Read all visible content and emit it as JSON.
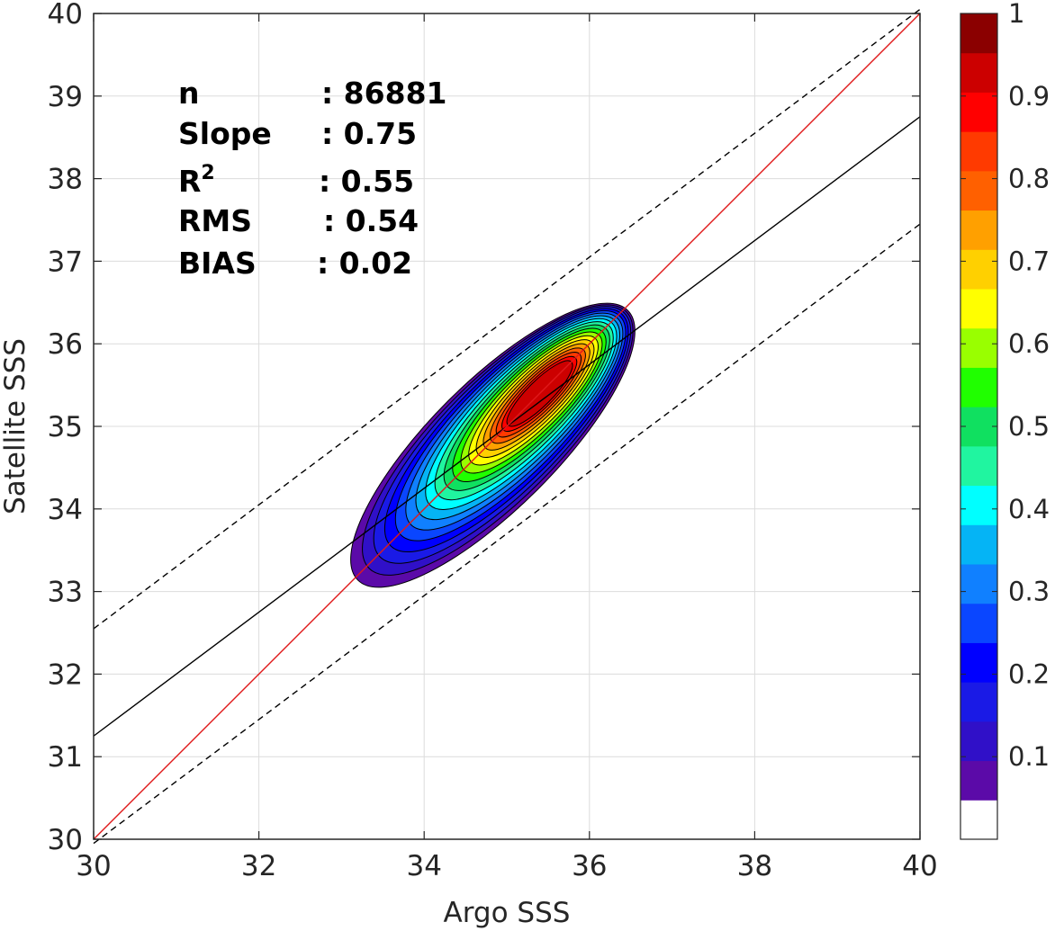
{
  "chart_data": {
    "type": "contour",
    "xlabel": "Argo SSS",
    "ylabel": "Satellite SSS",
    "xlim": [
      30,
      40
    ],
    "ylim": [
      30,
      40
    ],
    "xticks": [
      "30",
      "32",
      "34",
      "36",
      "38",
      "40"
    ],
    "yticks": [
      "30",
      "31",
      "32",
      "33",
      "34",
      "35",
      "36",
      "37",
      "38",
      "39",
      "40"
    ],
    "grid": true,
    "stats": [
      {
        "label": "n",
        "value": ": 86881"
      },
      {
        "label": "Slope",
        "value": ": 0.75"
      },
      {
        "label": "R",
        "sup": "2",
        "value": ": 0.55"
      },
      {
        "label": "RMS",
        "value": ": 0.54"
      },
      {
        "label": "BIAS",
        "value": ": 0.02"
      }
    ],
    "lines": {
      "identity": {
        "x": [
          30,
          40
        ],
        "y": [
          30,
          40
        ],
        "color": "#e0191b"
      },
      "fit": {
        "x": [
          30,
          40
        ],
        "y": [
          31.25,
          38.75
        ],
        "color": "#000000"
      },
      "upper_bound": {
        "x": [
          30,
          40
        ],
        "y": [
          32.55,
          40.05
        ],
        "color": "#000000"
      },
      "lower_bound": {
        "x": [
          30,
          40
        ],
        "y": [
          29.95,
          37.45
        ],
        "color": "#000000"
      }
    },
    "density": {
      "center": [
        35.4,
        35.4
      ],
      "peak": 1.0,
      "levels": [
        0.05,
        0.1,
        0.15,
        0.2,
        0.25,
        0.3,
        0.35,
        0.4,
        0.45,
        0.5,
        0.55,
        0.6,
        0.65,
        0.7,
        0.75,
        0.8,
        0.85,
        0.9,
        0.95
      ]
    },
    "colorbar": {
      "ticks": [
        "0.1",
        "0.2",
        "0.3",
        "0.4",
        "0.5",
        "0.6",
        "0.7",
        "0.8",
        "0.9",
        "1"
      ],
      "min": 0,
      "max": 1,
      "colors": [
        "#ffffff",
        "#5b0aa8",
        "#3010c8",
        "#1a1ae6",
        "#0000ff",
        "#0a46ff",
        "#1080ff",
        "#05b4f5",
        "#00ffff",
        "#20f5a0",
        "#10e060",
        "#20ff00",
        "#99ff00",
        "#ffff00",
        "#ffd000",
        "#ffa000",
        "#ff6000",
        "#ff3a00",
        "#ff0000",
        "#cc0000",
        "#8b0000"
      ]
    }
  }
}
